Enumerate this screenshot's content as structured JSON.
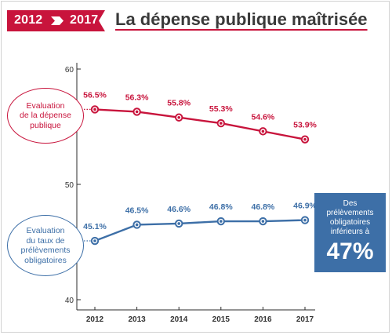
{
  "header": {
    "year_start": "2012",
    "year_end": "2017",
    "title": "La dépense publique maîtrisée"
  },
  "labels": {
    "spending_bubble": "Evaluation\nde la dépense\npublique",
    "tax_bubble": "Evaluation\ndu taux de\nprélèvements\nobligatoires",
    "callout_text": "Des\nprélèvements\nobligatoires\ninférieurs à",
    "callout_value": "47%"
  },
  "colors": {
    "red": "#c8143c",
    "blue": "#3d6fa7",
    "axis": "#2b2b2b"
  },
  "chart_data": {
    "type": "line",
    "x": [
      "2012",
      "2013",
      "2014",
      "2015",
      "2016",
      "2017"
    ],
    "ylim": [
      40,
      60
    ],
    "yticks": [
      40,
      50,
      60
    ],
    "series": [
      {
        "key": "spending",
        "values": [
          56.5,
          56.3,
          55.8,
          55.3,
          54.6,
          53.9
        ],
        "labels": [
          "56.5%",
          "56.3%",
          "55.8%",
          "55.3%",
          "54.6%",
          "53.9%"
        ],
        "color": "#c8143c"
      },
      {
        "key": "tax",
        "values": [
          45.1,
          46.5,
          46.6,
          46.8,
          46.8,
          46.9
        ],
        "labels": [
          "45.1%",
          "46.5%",
          "46.6%",
          "46.8%",
          "46.8%",
          "46.9%"
        ],
        "color": "#3d6fa7"
      }
    ]
  }
}
